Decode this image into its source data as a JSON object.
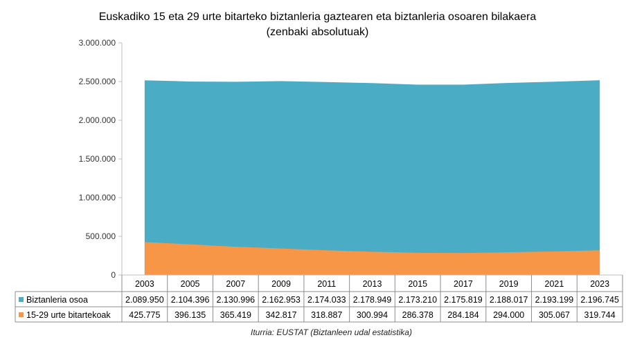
{
  "chart_data": {
    "type": "area",
    "stacked": true,
    "title_line1": "Euskadiko 15 eta 29 urte bitarteko biztanleria gaztearen eta biztanleria osoaren bilakaera",
    "title_line2": "(zenbaki absolutuak)",
    "categories": [
      "2003",
      "2005",
      "2007",
      "2009",
      "2011",
      "2013",
      "2015",
      "2017",
      "2019",
      "2021",
      "2023"
    ],
    "ylim": [
      0,
      3000000
    ],
    "yticks": [
      "0",
      "500.000",
      "1.000.000",
      "1.500.000",
      "2.000.000",
      "2.500.000",
      "3.000.000"
    ],
    "grid": false,
    "legend": "data-table",
    "series": [
      {
        "name": "15-29 urte bitartekoak",
        "color": "#F79646",
        "values": [
          425775,
          396135,
          365419,
          342817,
          318887,
          300994,
          286378,
          284184,
          294000,
          305067,
          319744
        ],
        "labels": [
          "425.775",
          "396.135",
          "365.419",
          "342.817",
          "318.887",
          "300.994",
          "286.378",
          "284.184",
          "294.000",
          "305.067",
          "319.744"
        ]
      },
      {
        "name": "Biztanleria osoa",
        "color": "#4BACC6",
        "values": [
          2089950,
          2104396,
          2130996,
          2162953,
          2174033,
          2178949,
          2173210,
          2175819,
          2188017,
          2193199,
          2196745
        ],
        "labels": [
          "2.089.950",
          "2.104.396",
          "2.130.996",
          "2.162.953",
          "2.174.033",
          "2.178.949",
          "2.173.210",
          "2.175.819",
          "2.188.017",
          "2.193.199",
          "2.196.745"
        ]
      }
    ],
    "source": "Iturria: EUSTAT (Biztanleen udal estatistika)"
  }
}
